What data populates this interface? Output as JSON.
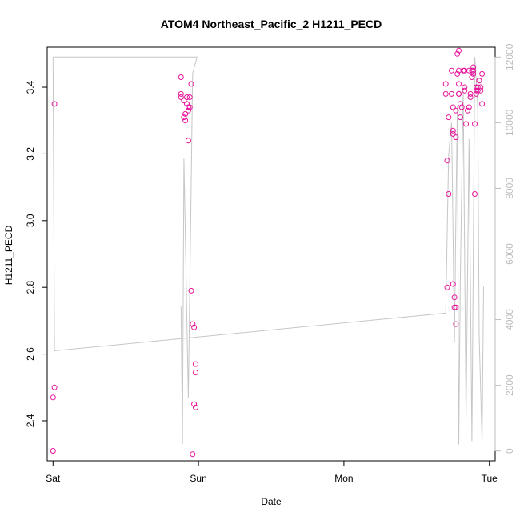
{
  "chart_data": {
    "type": "scatter",
    "title": "ATOM4 Northeast_Pacific_2 H1211_PECD",
    "xlabel": "Date",
    "ylabel": "H1211_PECD",
    "x_ticks": [
      "Sat",
      "Sun",
      "Mon",
      "Tue"
    ],
    "x_tick_values": [
      0,
      1,
      2,
      3
    ],
    "xlim": [
      -0.04,
      3.04
    ],
    "ylim": [
      2.28,
      3.52
    ],
    "y_ticks": [
      2.4,
      2.6,
      2.8,
      3.0,
      3.2,
      3.4
    ],
    "y_tick_labels": [
      "2.4",
      "2.6",
      "2.8",
      "3.0",
      "3.2",
      "3.4"
    ],
    "y2lim": [
      -300,
      12300
    ],
    "y2_ticks": [
      0,
      2000,
      4000,
      6000,
      8000,
      10000,
      12000
    ],
    "y2_tick_labels": [
      "0",
      "2000",
      "4000",
      "6000",
      "8000",
      "10000",
      "12000"
    ],
    "grid": false,
    "colors": {
      "points": "#e6139a",
      "altitude_line": "#c6c6c6",
      "axis": "#000000",
      "right_axis": "#bdbdbd"
    },
    "series": [
      {
        "type": "scatter",
        "values": [
          [
            0.01,
            3.35
          ],
          [
            0.0,
            2.47
          ],
          [
            0.01,
            2.5
          ],
          [
            0.0,
            2.31
          ],
          [
            0.88,
            3.43
          ],
          [
            0.88,
            3.38
          ],
          [
            0.88,
            3.37
          ],
          [
            0.9,
            3.36
          ],
          [
            0.9,
            3.31
          ],
          [
            0.91,
            3.3
          ],
          [
            0.91,
            3.32
          ],
          [
            0.92,
            3.37
          ],
          [
            0.92,
            3.35
          ],
          [
            0.93,
            3.34
          ],
          [
            0.93,
            3.33
          ],
          [
            0.93,
            3.24
          ],
          [
            0.94,
            3.37
          ],
          [
            0.94,
            3.34
          ],
          [
            0.95,
            3.41
          ],
          [
            0.95,
            2.79
          ],
          [
            0.96,
            2.69
          ],
          [
            0.97,
            2.68
          ],
          [
            0.97,
            2.45
          ],
          [
            0.98,
            2.57
          ],
          [
            0.98,
            2.545
          ],
          [
            0.98,
            2.44
          ],
          [
            0.96,
            2.3
          ],
          [
            2.7,
            3.41
          ],
          [
            2.7,
            3.38
          ],
          [
            2.71,
            3.18
          ],
          [
            2.71,
            2.8
          ],
          [
            2.72,
            3.08
          ],
          [
            2.72,
            3.31
          ],
          [
            2.74,
            3.45
          ],
          [
            2.74,
            3.38
          ],
          [
            2.75,
            3.34
          ],
          [
            2.75,
            3.27
          ],
          [
            2.75,
            3.26
          ],
          [
            2.75,
            2.81
          ],
          [
            2.76,
            2.77
          ],
          [
            2.76,
            2.74
          ],
          [
            2.77,
            2.74
          ],
          [
            2.77,
            2.69
          ],
          [
            2.77,
            3.33
          ],
          [
            2.77,
            3.25
          ],
          [
            2.78,
            3.44
          ],
          [
            2.78,
            3.5
          ],
          [
            2.79,
            3.51
          ],
          [
            2.79,
            3.45
          ],
          [
            2.79,
            3.41
          ],
          [
            2.79,
            3.38
          ],
          [
            2.79,
            3.38
          ],
          [
            2.8,
            3.35
          ],
          [
            2.8,
            3.31
          ],
          [
            2.81,
            3.34
          ],
          [
            2.82,
            3.45
          ],
          [
            2.83,
            3.45
          ],
          [
            2.83,
            3.4
          ],
          [
            2.83,
            3.39
          ],
          [
            2.84,
            3.29
          ],
          [
            2.85,
            3.33
          ],
          [
            2.86,
            3.45
          ],
          [
            2.86,
            3.34
          ],
          [
            2.87,
            3.38
          ],
          [
            2.87,
            3.37
          ],
          [
            2.88,
            3.45
          ],
          [
            2.88,
            3.43
          ],
          [
            2.89,
            3.46
          ],
          [
            2.89,
            3.45
          ],
          [
            2.89,
            3.44
          ],
          [
            2.9,
            3.29
          ],
          [
            2.9,
            3.08
          ],
          [
            2.91,
            3.4
          ],
          [
            2.91,
            3.39
          ],
          [
            2.91,
            3.38
          ],
          [
            2.92,
            3.39
          ],
          [
            2.92,
            3.4
          ],
          [
            2.93,
            3.42
          ],
          [
            2.93,
            3.42
          ],
          [
            2.94,
            3.39
          ],
          [
            2.94,
            3.4
          ],
          [
            2.95,
            3.44
          ],
          [
            2.95,
            3.35
          ]
        ]
      },
      {
        "type": "line",
        "axis": "right",
        "values": [
          [
            0.0,
            12000
          ],
          [
            0.01,
            3050
          ],
          [
            2.7,
            4200
          ],
          [
            2.72,
            9000
          ],
          [
            2.74,
            10000
          ],
          [
            2.76,
            3300
          ],
          [
            2.77,
            7200
          ],
          [
            2.78,
            10500
          ],
          [
            2.79,
            200
          ],
          [
            2.8,
            5200
          ],
          [
            2.82,
            11000
          ],
          [
            2.84,
            1000
          ],
          [
            2.86,
            9500
          ],
          [
            2.88,
            300
          ],
          [
            2.9,
            12000
          ],
          [
            2.92,
            10500
          ],
          [
            2.93,
            3500
          ],
          [
            2.95,
            300
          ],
          [
            2.96,
            5000
          ]
        ]
      },
      {
        "type": "line",
        "axis": "right",
        "values": [
          [
            0.88,
            4400
          ],
          [
            0.89,
            200
          ],
          [
            0.9,
            8900
          ],
          [
            0.93,
            1600
          ],
          [
            0.96,
            11500
          ],
          [
            0.99,
            12000
          ],
          [
            0.99,
            12000
          ],
          [
            0.0,
            12000
          ]
        ]
      }
    ]
  }
}
